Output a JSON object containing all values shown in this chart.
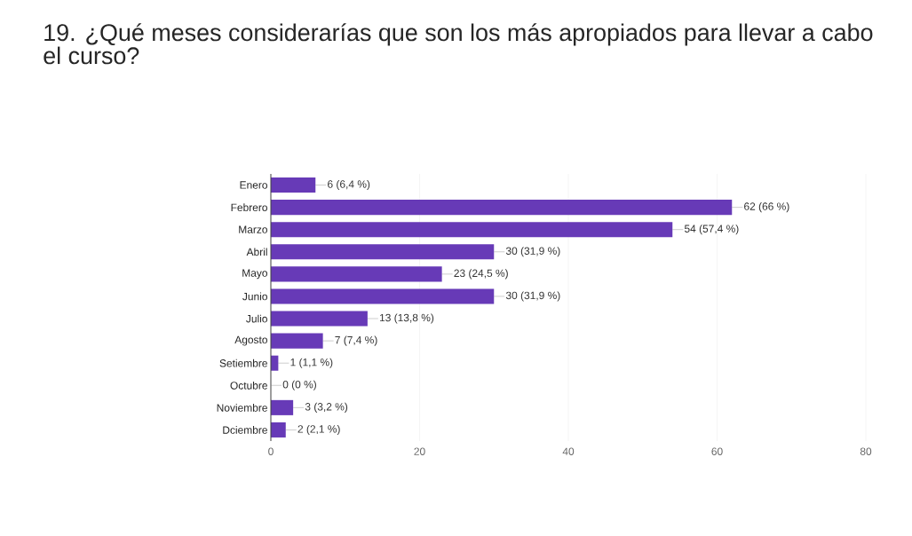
{
  "chart_data": {
    "type": "bar",
    "orientation": "horizontal",
    "title": "19. ¿Qué meses considerarías que son los más apropiados para llevar a cabo el curso?",
    "categories": [
      "Enero",
      "Febrero",
      "Marzo",
      "Abril",
      "Mayo",
      "Junio",
      "Julio",
      "Agosto",
      "Setiembre",
      "Octubre",
      "Noviembre",
      "Dciembre"
    ],
    "values": [
      6,
      62,
      54,
      30,
      23,
      30,
      13,
      7,
      1,
      0,
      3,
      2
    ],
    "value_labels": [
      "6 (6,4 %)",
      "62 (66 %)",
      "54 (57,4 %)",
      "30 (31,9 %)",
      "23 (24,5 %)",
      "30 (31,9 %)",
      "13 (13,8 %)",
      "7 (7,4 %)",
      "1 (1,1 %)",
      "0 (0 %)",
      "3 (3,2 %)",
      "2 (2,1 %)"
    ],
    "color": "#673ab7",
    "xlim": [
      0,
      80
    ],
    "xticks": [
      0,
      20,
      40,
      60,
      80
    ],
    "grid": "x"
  }
}
